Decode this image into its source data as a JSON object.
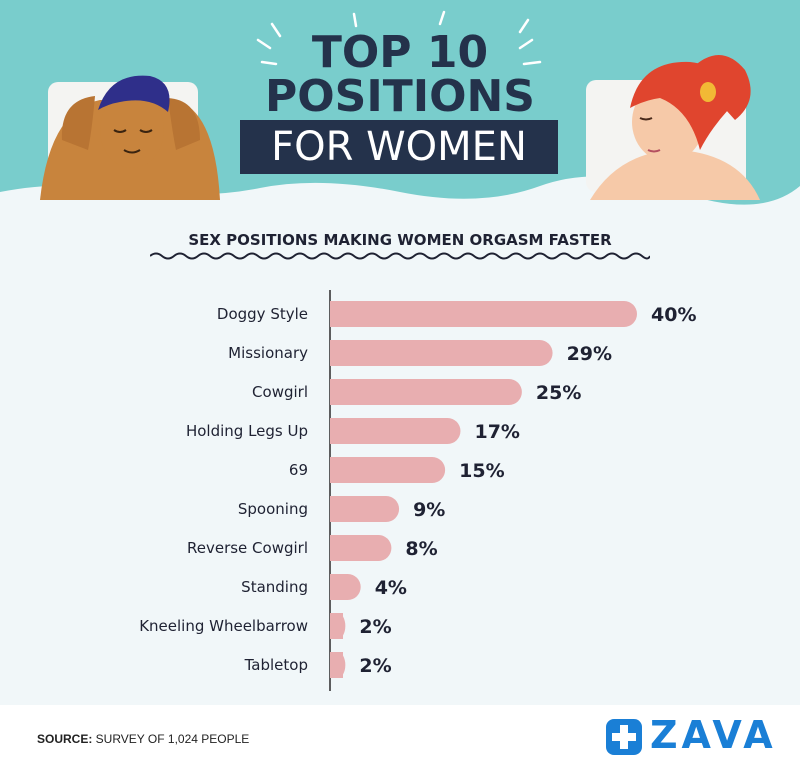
{
  "title": {
    "line1": "TOP 10",
    "line2": "POSITIONS",
    "line3": "FOR WOMEN"
  },
  "subtitle": "SEX POSITIONS MAKING WOMEN ORGASM FASTER",
  "chart_data": {
    "type": "bar",
    "orientation": "horizontal",
    "categories": [
      "Doggy Style",
      "Missionary",
      "Cowgirl",
      "Holding Legs Up",
      "69",
      "Spooning",
      "Reverse Cowgirl",
      "Standing",
      "Kneeling Wheelbarrow",
      "Tabletop"
    ],
    "values": [
      40,
      29,
      25,
      17,
      15,
      9,
      8,
      4,
      2,
      2
    ],
    "value_labels": [
      "40%",
      "29%",
      "25%",
      "17%",
      "15%",
      "9%",
      "8%",
      "4%",
      "2%",
      "2%"
    ],
    "title": "SEX POSITIONS MAKING WOMEN ORGASM FASTER",
    "xlabel": "",
    "ylabel": "",
    "xlim": [
      0,
      40
    ],
    "grid": false,
    "bar_color": "#e8aeb0"
  },
  "footer": {
    "source_label": "SOURCE:",
    "source_text": " SURVEY OF 1,024 PEOPLE",
    "brand": "ZAVA"
  },
  "colors": {
    "header_bg": "#79cdcc",
    "title_dark": "#24324b",
    "brand_blue": "#1a7fd6",
    "bar": "#e8aeb0"
  },
  "icons": {
    "man": "man-illustration-icon",
    "woman": "woman-illustration-icon",
    "logo_cross": "medical-cross-icon"
  }
}
